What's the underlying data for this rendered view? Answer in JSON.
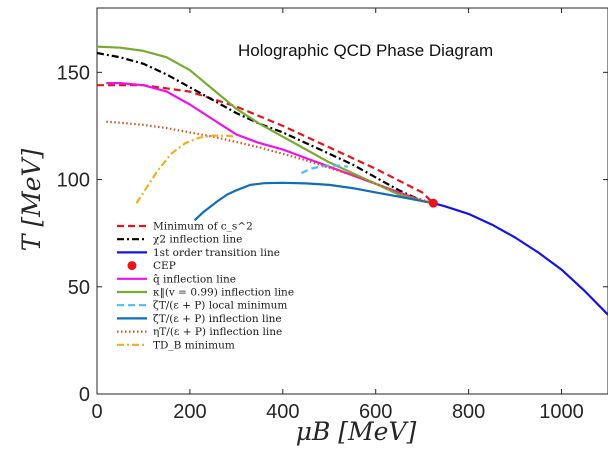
{
  "chart_data": {
    "type": "line",
    "title": "Holographic QCD Phase Diagram",
    "xlabel": "μB [MeV]",
    "ylabel": "T [MeV]",
    "xlim": [
      0,
      1100
    ],
    "ylim": [
      0,
      180
    ],
    "xticks": [
      "0",
      "200",
      "400",
      "600",
      "800",
      "1000"
    ],
    "yticks": [
      "0",
      "50",
      "100",
      "150"
    ],
    "grid": false,
    "legend_position": "bottom-left",
    "series": [
      {
        "name": "Minimum of c_s^2",
        "color": "#e8141c",
        "dash": "dashed",
        "x": [
          0,
          100,
          200,
          300,
          400,
          500,
          600,
          700,
          724
        ],
        "y": [
          144,
          144,
          141,
          134,
          125,
          115,
          105,
          94,
          89
        ]
      },
      {
        "name": "χ2 inflection line",
        "color": "#000000",
        "dash": "dashdot",
        "x": [
          0,
          50,
          100,
          150,
          200,
          250,
          300,
          350,
          400,
          450,
          500,
          550,
          600,
          650,
          700,
          724
        ],
        "y": [
          159,
          157,
          154,
          149,
          143,
          137,
          131,
          126,
          122,
          117,
          112,
          107,
          101,
          95,
          90,
          89
        ]
      },
      {
        "name": "1st order transition line",
        "color": "#1414e6",
        "dash": "solid",
        "x": [
          724,
          750,
          800,
          850,
          900,
          950,
          1000,
          1050,
          1100
        ],
        "y": [
          89,
          87.5,
          84,
          79,
          73,
          66,
          58,
          48,
          37
        ]
      },
      {
        "name": "CEP",
        "color": "#e8141c",
        "dash": "marker",
        "x": [
          724
        ],
        "y": [
          89
        ]
      },
      {
        "name": "q̂ inflection line",
        "color": "#ee11ee",
        "dash": "solid",
        "x": [
          20,
          50,
          100,
          150,
          200,
          250,
          300,
          350,
          400,
          450,
          500,
          550,
          600,
          650,
          700,
          724
        ],
        "y": [
          145,
          145,
          144,
          141,
          135,
          128,
          121,
          117,
          114,
          110,
          106,
          102,
          98,
          94,
          90,
          89
        ]
      },
      {
        "name": "κ‖(v = 0.99) inflection line",
        "color": "#77ac30",
        "dash": "solid",
        "x": [
          0,
          50,
          100,
          150,
          200,
          250,
          300,
          350,
          400,
          450,
          500,
          550,
          600,
          650,
          700,
          724
        ],
        "y": [
          162,
          161.5,
          160,
          157,
          151,
          142,
          133,
          126,
          120,
          114,
          108,
          103,
          98,
          93,
          90,
          89
        ]
      },
      {
        "name": "ζT/(ε + P) local minimum",
        "color": "#4dbeee",
        "dash": "dashed",
        "x": [
          440,
          460,
          480,
          500,
          520,
          540
        ],
        "y": [
          103,
          105,
          106,
          106.5,
          106.5,
          106
        ]
      },
      {
        "name": "ζT/(ε + P) inflection line",
        "color": "#0f6eb8",
        "dash": "solid",
        "x": [
          210,
          230,
          260,
          280,
          300,
          330,
          360,
          400,
          450,
          500,
          550,
          600,
          650,
          700,
          724
        ],
        "y": [
          81,
          85,
          90,
          93,
          95,
          97.5,
          98.3,
          98.5,
          98.2,
          97.5,
          96,
          94,
          92,
          90,
          89
        ]
      },
      {
        "name": "ηT/(ε + P) inflection line",
        "color": "#d95319",
        "dash": "dotted",
        "x": [
          20,
          50,
          100,
          150,
          200,
          250,
          300,
          350,
          400,
          450,
          500,
          550,
          600,
          650,
          700,
          724
        ],
        "y": [
          127,
          126.5,
          125.5,
          124,
          122,
          120,
          117.5,
          115,
          112,
          109,
          105.5,
          102,
          98,
          94,
          90.5,
          89
        ]
      },
      {
        "name": "TD_B minimum",
        "color": "#edb120",
        "dash": "dashdot",
        "x": [
          85,
          100,
          130,
          160,
          190,
          220,
          250,
          280,
          300
        ],
        "y": [
          89,
          94,
          104,
          112,
          117,
          119.5,
          120.5,
          120.5,
          120
        ]
      }
    ]
  }
}
